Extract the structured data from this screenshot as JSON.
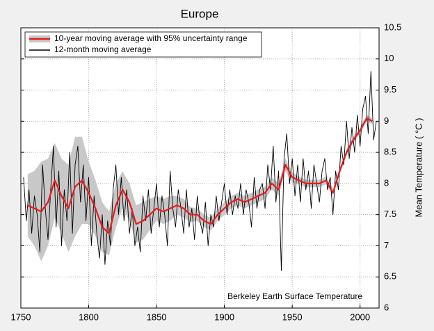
{
  "chart_data": {
    "type": "line",
    "title": "Europe",
    "y_label": "Mean Temperature ( °C )",
    "annotation": "Berkeley Earth Surface Temperature",
    "xlim": [
      1750,
      2014
    ],
    "ylim": [
      6,
      10.5
    ],
    "xticks": [
      1750,
      1800,
      1850,
      1900,
      1950,
      2000
    ],
    "yticks": [
      6,
      6.5,
      7,
      7.5,
      8,
      8.5,
      9,
      9.5,
      10,
      10.5
    ],
    "grid": true,
    "legend": "upper left",
    "series": [
      {
        "name": "10-year moving average with 95% uncertainty range",
        "color": "#e8191b",
        "band_color": "#c8c8c8",
        "x": [
          1755,
          1760,
          1765,
          1770,
          1775,
          1780,
          1785,
          1790,
          1795,
          1800,
          1805,
          1810,
          1815,
          1820,
          1825,
          1830,
          1835,
          1840,
          1845,
          1850,
          1855,
          1860,
          1865,
          1870,
          1875,
          1880,
          1885,
          1890,
          1895,
          1900,
          1905,
          1910,
          1915,
          1920,
          1925,
          1930,
          1935,
          1940,
          1945,
          1950,
          1955,
          1960,
          1965,
          1970,
          1975,
          1980,
          1985,
          1990,
          1995,
          2000,
          2005,
          2009
        ],
        "values": [
          7.65,
          7.6,
          7.55,
          7.7,
          8.05,
          7.8,
          7.6,
          7.95,
          8.05,
          7.85,
          7.6,
          7.3,
          7.2,
          7.65,
          7.9,
          7.7,
          7.35,
          7.4,
          7.5,
          7.6,
          7.55,
          7.6,
          7.65,
          7.6,
          7.5,
          7.5,
          7.4,
          7.35,
          7.5,
          7.6,
          7.7,
          7.75,
          7.7,
          7.75,
          7.8,
          7.85,
          8.0,
          7.9,
          8.3,
          8.1,
          8.05,
          8.0,
          8.0,
          8.0,
          8.05,
          7.85,
          8.2,
          8.5,
          8.7,
          8.85,
          9.05,
          9.0
        ],
        "lower": [
          7.15,
          7.0,
          6.75,
          7.0,
          7.45,
          7.2,
          6.9,
          7.15,
          7.35,
          7.35,
          7.15,
          6.9,
          6.85,
          7.3,
          7.6,
          7.4,
          7.05,
          7.1,
          7.25,
          7.4,
          7.35,
          7.4,
          7.5,
          7.45,
          7.38,
          7.4,
          7.3,
          7.25,
          7.4,
          7.5,
          7.6,
          7.65,
          7.6,
          7.65,
          7.7,
          7.75,
          7.9,
          7.8,
          8.2,
          8.02,
          7.99,
          7.94,
          7.94,
          7.94,
          7.99,
          7.8,
          8.15,
          8.45,
          8.65,
          8.8,
          9.0,
          8.95
        ],
        "upper": [
          8.15,
          8.2,
          8.35,
          8.4,
          8.65,
          8.4,
          8.3,
          8.75,
          8.75,
          8.35,
          8.05,
          7.7,
          7.55,
          8.0,
          8.2,
          8.0,
          7.65,
          7.7,
          7.75,
          7.8,
          7.75,
          7.8,
          7.8,
          7.75,
          7.62,
          7.6,
          7.5,
          7.45,
          7.6,
          7.7,
          7.8,
          7.85,
          7.8,
          7.85,
          7.9,
          7.95,
          8.1,
          8.0,
          8.4,
          8.18,
          8.11,
          8.06,
          8.06,
          8.06,
          8.11,
          7.9,
          8.25,
          8.55,
          8.75,
          8.9,
          9.1,
          9.05
        ]
      },
      {
        "name": "12-month moving average",
        "color": "#000000",
        "x": [
          1752,
          1754,
          1756,
          1758,
          1760,
          1762,
          1764,
          1766,
          1768,
          1770,
          1772,
          1774,
          1776,
          1778,
          1780,
          1782,
          1784,
          1786,
          1788,
          1790,
          1792,
          1794,
          1796,
          1798,
          1800,
          1802,
          1804,
          1806,
          1808,
          1810,
          1812,
          1814,
          1816,
          1818,
          1820,
          1822,
          1824,
          1826,
          1828,
          1830,
          1832,
          1834,
          1836,
          1838,
          1840,
          1842,
          1844,
          1846,
          1848,
          1850,
          1852,
          1854,
          1856,
          1858,
          1860,
          1862,
          1864,
          1866,
          1868,
          1870,
          1872,
          1874,
          1876,
          1878,
          1880,
          1882,
          1884,
          1886,
          1888,
          1890,
          1892,
          1894,
          1896,
          1898,
          1900,
          1902,
          1904,
          1906,
          1908,
          1910,
          1912,
          1914,
          1916,
          1918,
          1920,
          1922,
          1924,
          1926,
          1928,
          1930,
          1932,
          1934,
          1936,
          1938,
          1940,
          1942,
          1944,
          1946,
          1948,
          1950,
          1952,
          1954,
          1956,
          1958,
          1960,
          1962,
          1964,
          1966,
          1968,
          1970,
          1972,
          1974,
          1976,
          1978,
          1980,
          1982,
          1984,
          1986,
          1988,
          1990,
          1992,
          1994,
          1996,
          1998,
          2000,
          2002,
          2004,
          2006,
          2008,
          2010,
          2012
        ],
        "values": [
          8.1,
          7.4,
          7.9,
          7.2,
          7.8,
          7.5,
          6.9,
          8.3,
          7.6,
          7.1,
          7.9,
          8.6,
          7.3,
          8.2,
          7.0,
          7.9,
          7.4,
          8.5,
          7.2,
          8.3,
          8.6,
          7.7,
          8.3,
          7.4,
          8.1,
          7.0,
          7.8,
          7.2,
          6.8,
          7.5,
          6.7,
          7.4,
          7.0,
          7.9,
          8.3,
          7.5,
          8.1,
          7.4,
          7.9,
          7.2,
          7.6,
          7.0,
          7.3,
          6.9,
          7.8,
          7.4,
          7.9,
          7.2,
          7.6,
          8.0,
          7.3,
          7.8,
          7.5,
          7.0,
          8.2,
          7.6,
          7.3,
          7.9,
          7.6,
          7.2,
          7.9,
          7.3,
          7.6,
          7.1,
          7.8,
          7.4,
          7.2,
          7.7,
          7.0,
          7.5,
          7.3,
          7.8,
          7.4,
          7.7,
          8.0,
          7.5,
          7.9,
          7.5,
          7.8,
          7.6,
          8.0,
          7.5,
          7.9,
          7.7,
          7.3,
          8.1,
          7.6,
          7.9,
          8.0,
          7.6,
          8.3,
          7.9,
          8.6,
          7.7,
          8.2,
          6.6,
          8.4,
          8.8,
          8.0,
          8.4,
          7.8,
          8.3,
          7.7,
          8.4,
          7.9,
          8.2,
          7.6,
          8.3,
          8.0,
          7.7,
          8.2,
          8.4,
          7.9,
          8.1,
          7.5,
          8.2,
          7.9,
          8.6,
          8.3,
          9.0,
          8.4,
          8.9,
          8.5,
          9.1,
          8.6,
          9.2,
          9.4,
          8.8,
          9.8,
          8.7,
          9.0
        ]
      }
    ]
  }
}
